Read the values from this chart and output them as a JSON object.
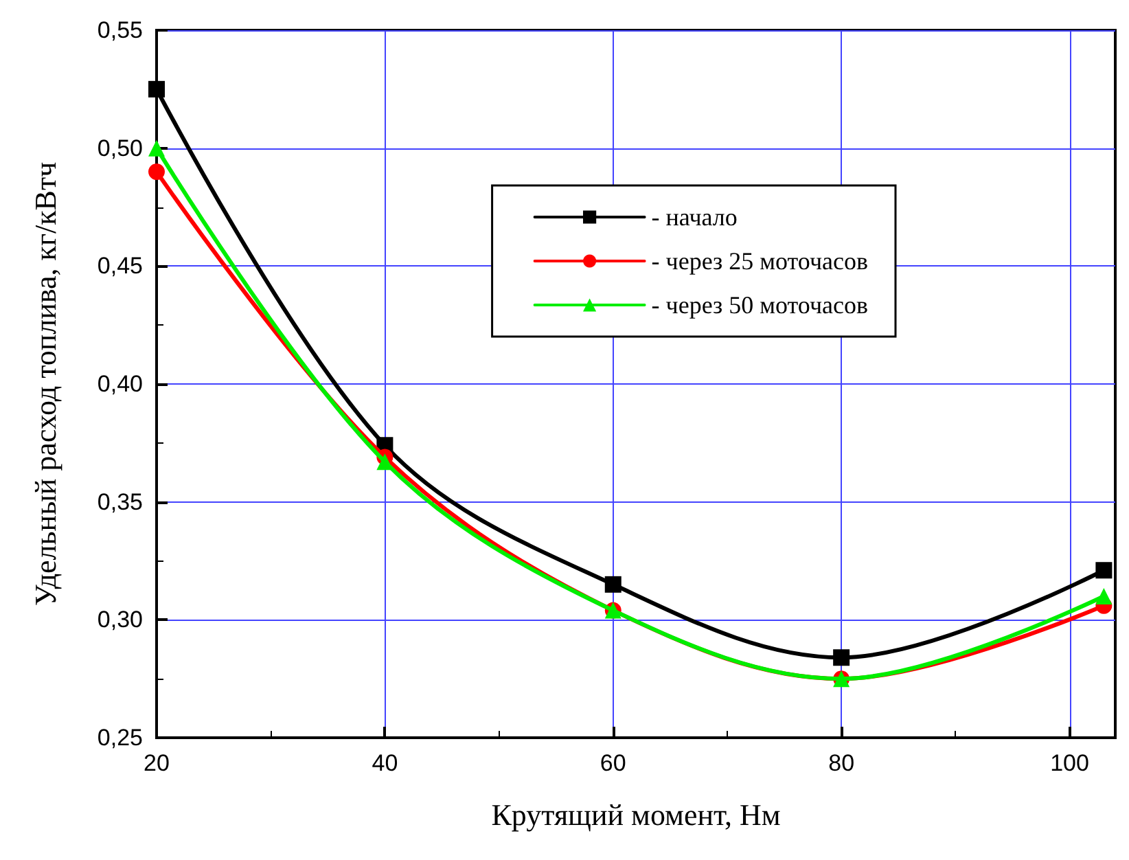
{
  "chart_data": {
    "type": "line",
    "xlabel": "Крутящий момент, Нм",
    "ylabel": "Удельный расход топлива, кг/кВтч",
    "x": [
      20,
      40,
      60,
      80,
      103
    ],
    "series": [
      {
        "name": "- начало",
        "color": "#000000",
        "marker": "square",
        "values": [
          0.525,
          0.374,
          0.315,
          0.284,
          0.321
        ]
      },
      {
        "name": "- через 25 моточасов",
        "color": "#ff0000",
        "marker": "circle",
        "values": [
          0.49,
          0.369,
          0.304,
          0.275,
          0.306
        ]
      },
      {
        "name": "- через 50 моточасов",
        "color": "#00ee00",
        "marker": "triangle",
        "values": [
          0.5,
          0.367,
          0.304,
          0.275,
          0.31
        ]
      }
    ],
    "xlim": [
      20,
      104
    ],
    "xticks": [
      20,
      40,
      60,
      80,
      100
    ],
    "ylim": [
      0.25,
      0.55
    ],
    "yticks": [
      {
        "value": 0.25,
        "label": "0,25"
      },
      {
        "value": 0.3,
        "label": "0,30"
      },
      {
        "value": 0.35,
        "label": "0,35"
      },
      {
        "value": 0.4,
        "label": "0,40"
      },
      {
        "value": 0.45,
        "label": "0,45"
      },
      {
        "value": 0.5,
        "label": "0,50"
      },
      {
        "value": 0.55,
        "label": "0,55"
      }
    ],
    "grid": true,
    "legend": "top right",
    "line_style": "solid"
  }
}
